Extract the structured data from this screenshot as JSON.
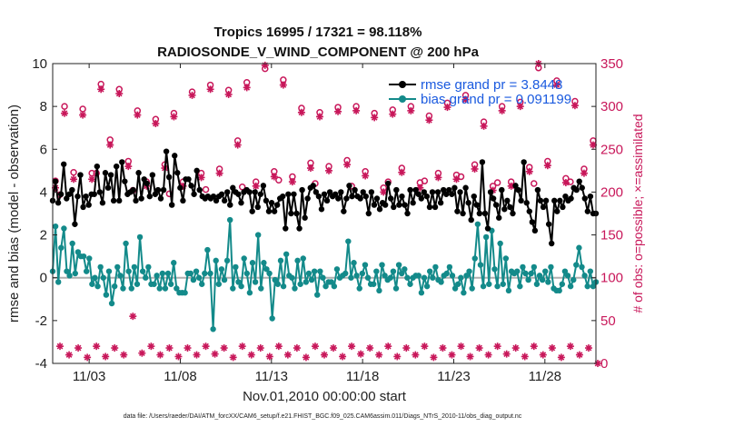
{
  "chart_data": {
    "type": "line",
    "title_line1": "Tropics 16995 / 17321 = 98.118%",
    "title_line2": "RADIOSONDE_V_WIND_COMPONENT @ 200 hPa",
    "ylabel_left": "rmse and bias (model - observation)",
    "ylabel_right": "# of obs: o=possible; ×=assimilated",
    "xlabel": "Nov.01,2010 00:00:00 start",
    "footnote": "data file: /Users/raeder/DAI/ATM_forcXX/CAM6_setup/f.e21.FHIST_BGC.f09_025.CAM6assim.011/Diags_NTrS_2010-11/obs_diag_output.nc",
    "ylim_left": [
      -4,
      10
    ],
    "ylim_right": [
      0,
      350
    ],
    "xlim": [
      1.0,
      30.8
    ],
    "yticks_left": [
      "-4",
      "-2",
      "0",
      "2",
      "4",
      "6",
      "8",
      "10"
    ],
    "yticks_right": [
      "0",
      "50",
      "100",
      "150",
      "200",
      "250",
      "300",
      "350"
    ],
    "xtick_labels": [
      "11/03",
      "11/08",
      "11/13",
      "11/18",
      "11/23",
      "11/28"
    ],
    "xtick_days": [
      3,
      8,
      13,
      18,
      23,
      28
    ],
    "legend": [
      {
        "label": "rmse grand pr = 3.8448",
        "color": "#000000"
      },
      {
        "label": "bias grand pr = 0.091199",
        "color": "#138a8a"
      }
    ],
    "colors": {
      "rmse": "#000000",
      "bias": "#138a8a",
      "obs": "#c8175a",
      "zero": "#b0b0b0"
    },
    "series": [
      {
        "name": "rmse",
        "axis": "left",
        "values": [
          3.6,
          4.5,
          3.5,
          3.9,
          5.3,
          3.7,
          3.9,
          4.1,
          2.5,
          3.8,
          4.8,
          3.3,
          3.8,
          3.4,
          3.9,
          3.9,
          5.2,
          4.0,
          3.5,
          4.9,
          4.2,
          4.8,
          3.6,
          5.2,
          3.6,
          5.4,
          4.5,
          3.9,
          4.0,
          4.1,
          3.6,
          4.9,
          3.7,
          4.6,
          4.4,
          3.8,
          4.8,
          3.9,
          4.1,
          3.7,
          4.1,
          5.9,
          4.7,
          3.4,
          5.7,
          4.9,
          4.2,
          3.6,
          4.6,
          4.6,
          4.3,
          3.9,
          5.0,
          4.1,
          3.8,
          3.7,
          3.8,
          3.7,
          3.8,
          3.6,
          3.8,
          3.9,
          3.6,
          4.0,
          3.4,
          4.2,
          4.0,
          3.9,
          3.5,
          4.0,
          4.1,
          4.0,
          3.1,
          4.0,
          3.3,
          3.9,
          4.3,
          3.6,
          3.1,
          3.5,
          3.1,
          3.4,
          3.7,
          3.8,
          2.3,
          3.9,
          3.0,
          3.9,
          3.0,
          2.3,
          4.1,
          2.8,
          3.7,
          4.2,
          4.3,
          4.0,
          3.8,
          3.2,
          3.9,
          3.6,
          4.0,
          3.8,
          3.9,
          3.7,
          4.0,
          3.1,
          3.7,
          4.3,
          3.8,
          4.1,
          3.8,
          3.7,
          4.0,
          3.8,
          3.0,
          4.0,
          3.4,
          3.7,
          3.2,
          3.5,
          3.4,
          4.4,
          3.7,
          3.3,
          4.1,
          3.4,
          3.8,
          3.4,
          3.0,
          4.1,
          3.5,
          4.1,
          3.9,
          3.7,
          4.0,
          3.8,
          3.3,
          4.0,
          3.3,
          4.0,
          3.5,
          4.1,
          3.9,
          4.1,
          3.9,
          4.2,
          3.1,
          4.0,
          3.0,
          4.2,
          3.5,
          2.7,
          3.8,
          3.4,
          3.0,
          5.4,
          3.0,
          2.3,
          4.0,
          3.7,
          3.4,
          2.8,
          4.1,
          3.2,
          3.6,
          3.3,
          3.0,
          4.3,
          4.1,
          3.6,
          5.4,
          3.5,
          3.1,
          2.6,
          2.2,
          4.1,
          3.6,
          3.3,
          3.6,
          2.5,
          1.6,
          3.6,
          3.1,
          3.6,
          3.3,
          3.8,
          3.6,
          3.7,
          4.2,
          4.1,
          4.5,
          4.2,
          3.7,
          3.1,
          3.8,
          3.0,
          3.0
        ]
      },
      {
        "name": "bias",
        "axis": "left",
        "values": [
          0.3,
          2.4,
          -0.2,
          1.4,
          2.3,
          0.3,
          0.1,
          1.6,
          0.2,
          1.2,
          1.0,
          1.0,
          0.3,
          0.9,
          -0.3,
          0.0,
          -0.4,
          0.5,
          0.0,
          -0.8,
          0.3,
          -1.2,
          -0.4,
          0.5,
          0.1,
          -0.5,
          1.6,
          0.3,
          -0.5,
          0.5,
          -0.3,
          1.9,
          0.3,
          0.0,
          0.5,
          -0.3,
          -0.3,
          0.1,
          -0.5,
          0.2,
          -0.5,
          0.2,
          -0.3,
          0.7,
          -0.5,
          -0.7,
          -0.7,
          -0.7,
          0.2,
          0.2,
          -0.1,
          0.3,
          0.0,
          -0.3,
          0.2,
          1.3,
          0.2,
          -2.4,
          0.8,
          -0.3,
          0.4,
          -0.1,
          0.8,
          2.7,
          -0.5,
          0.5,
          -0.2,
          -0.4,
          0.9,
          0.2,
          -0.7,
          0.7,
          -0.2,
          2.0,
          -0.5,
          0.7,
          0.4,
          0.2,
          -1.9,
          -0.1,
          -0.3,
          0.8,
          -0.4,
          1.1,
          0.1,
          0.0,
          -0.5,
          0.8,
          -0.3,
          0.9,
          -0.2,
          0.2,
          -0.1,
          0.3,
          -0.8,
          0.3,
          0.0,
          -0.4,
          -0.2,
          -0.2,
          -0.4,
          0.4,
          0.0,
          0.1,
          0.2,
          1.7,
          0.0,
          0.7,
          0.1,
          -0.5,
          0.2,
          0.6,
          0.0,
          -0.3,
          -0.3,
          0.3,
          -0.6,
          0.6,
          0.1,
          -0.1,
          0.0,
          0.3,
          -0.5,
          0.6,
          0.2,
          0.4,
          0.0,
          -0.3,
          0.0,
          0.1,
          0.1,
          -0.7,
          0.0,
          -0.4,
          0.3,
          0.0,
          0.5,
          -0.1,
          -0.2,
          0.1,
          0.2,
          0.5,
          0.1,
          -0.5,
          -0.3,
          0.0,
          -0.7,
          0.1,
          0.3,
          -0.5,
          0.9,
          2.5,
          0.6,
          -0.4,
          1.9,
          -0.3,
          2.2,
          0.4,
          -0.4,
          1.6,
          -0.3,
          0.9,
          -0.6,
          0.3,
          0.2,
          0.3,
          -0.4,
          0.5,
          0.2,
          -0.1,
          0.2,
          0.5,
          -0.3,
          0.1,
          -0.1,
          0.3,
          -0.2,
          0.5,
          -0.5,
          -0.6,
          -0.6,
          -0.3,
          0.3,
          0.1,
          -0.4,
          -0.1,
          0.6,
          1.4,
          0.5,
          0.1,
          -0.4,
          0.3,
          -0.4,
          -0.2
        ]
      },
      {
        "name": "possible",
        "axis": "right",
        "marker": "o",
        "x": [
          1.15,
          1.65,
          2.15,
          2.65,
          3.15,
          3.65,
          4.15,
          4.65,
          5.15,
          5.65,
          6.15,
          6.65,
          7.15,
          7.65,
          8.15,
          8.65,
          9.15,
          9.65,
          10.15,
          10.65,
          11.15,
          11.65,
          12.15,
          12.65,
          13.15,
          13.65,
          14.15,
          14.65,
          15.15,
          15.65,
          16.15,
          16.65,
          17.15,
          17.65,
          18.15,
          18.65,
          19.15,
          19.65,
          20.15,
          20.65,
          21.15,
          21.65,
          22.15,
          22.65,
          23.15,
          23.65,
          24.15,
          24.65,
          25.15,
          25.65,
          26.15,
          26.65,
          27.15,
          27.65,
          28.15,
          28.65,
          29.15,
          29.65,
          30.15,
          30.65,
          1.4,
          3.4,
          5.4,
          7.4,
          9.4,
          11.4,
          13.4,
          15.4,
          17.4,
          19.4,
          21.4,
          23.4,
          25.4,
          27.4,
          29.4
        ],
        "values": [
          213,
          300,
          223,
          297,
          222,
          326,
          261,
          320,
          236,
          295,
          212,
          285,
          232,
          292,
          212,
          317,
          222,
          325,
          227,
          319,
          260,
          328,
          212,
          344,
          224,
          331,
          218,
          298,
          234,
          293,
          230,
          299,
          237,
          300,
          224,
          292,
          205,
          296,
          228,
          300,
          211,
          289,
          222,
          304,
          220,
          313,
          232,
          282,
          207,
          300,
          212,
          305,
          229,
          345,
          236,
          330,
          216,
          306,
          227,
          260,
          197,
          222,
          202,
          198,
          203,
          206,
          214,
          210,
          207,
          212,
          213,
          218,
          211,
          210,
          212
        ]
      },
      {
        "name": "assimilated",
        "axis": "right",
        "marker": "x",
        "x": [
          1.15,
          1.65,
          2.15,
          2.65,
          3.15,
          3.65,
          4.15,
          4.65,
          5.15,
          5.65,
          6.15,
          6.65,
          7.15,
          7.65,
          8.15,
          8.65,
          9.15,
          9.65,
          10.15,
          10.65,
          11.15,
          11.65,
          12.15,
          12.65,
          13.15,
          13.65,
          14.15,
          14.65,
          15.15,
          15.65,
          16.15,
          16.65,
          17.15,
          17.65,
          18.15,
          18.65,
          19.15,
          19.65,
          20.15,
          20.65,
          21.15,
          21.65,
          22.15,
          22.65,
          23.15,
          23.65,
          24.15,
          24.65,
          25.15,
          25.65,
          26.15,
          26.65,
          27.15,
          27.65,
          28.15,
          28.65,
          29.15,
          29.65,
          30.15,
          30.65,
          1.4,
          1.9,
          2.4,
          2.9,
          3.4,
          3.9,
          4.4,
          4.9,
          5.4,
          5.9,
          6.4,
          6.9,
          7.4,
          7.9,
          8.4,
          8.9,
          9.4,
          9.9,
          10.4,
          10.9,
          11.4,
          11.9,
          12.4,
          12.9,
          13.4,
          13.9,
          14.4,
          14.9,
          15.4,
          15.9,
          16.4,
          16.9,
          17.4,
          17.9,
          18.4,
          18.9,
          19.4,
          19.9,
          20.4,
          20.9,
          21.4,
          21.9,
          22.4,
          22.9,
          23.4,
          23.9,
          24.4,
          24.9,
          25.4,
          25.9,
          26.4,
          26.9,
          27.4,
          27.9,
          28.4,
          28.9,
          29.4,
          29.9,
          30.4,
          30.9
        ],
        "values": [
          205,
          292,
          215,
          290,
          215,
          320,
          255,
          315,
          230,
          290,
          207,
          280,
          228,
          288,
          207,
          313,
          217,
          320,
          222,
          314,
          255,
          322,
          207,
          348,
          218,
          325,
          212,
          293,
          228,
          288,
          225,
          294,
          232,
          295,
          219,
          287,
          200,
          291,
          223,
          295,
          205,
          284,
          217,
          299,
          215,
          308,
          227,
          277,
          202,
          295,
          207,
          300,
          224,
          350,
          231,
          325,
          211,
          301,
          222,
          255,
          20,
          10,
          18,
          7,
          20,
          8,
          18,
          10,
          55,
          12,
          20,
          10,
          18,
          8,
          18,
          10,
          20,
          11,
          18,
          7,
          20,
          10,
          18,
          8,
          20,
          10,
          18,
          7,
          20,
          10,
          18,
          8,
          20,
          11,
          18,
          10,
          20,
          8,
          18,
          10,
          20,
          7,
          18,
          10,
          20,
          8,
          18,
          10,
          20,
          11,
          18,
          8,
          20,
          10,
          18,
          7,
          20,
          10,
          18,
          0
        ]
      }
    ]
  }
}
